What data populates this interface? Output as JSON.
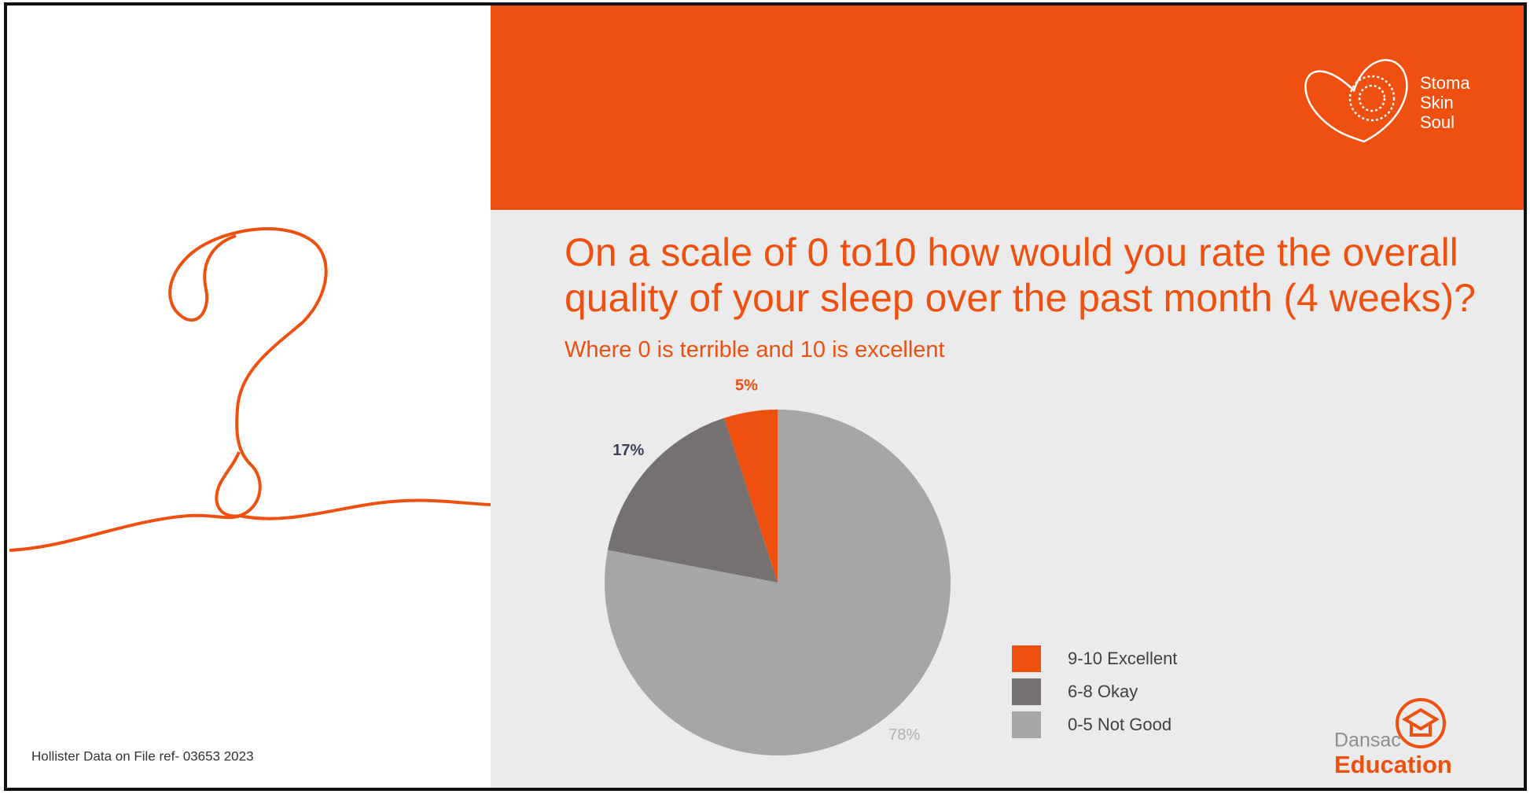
{
  "header": {
    "logo": [
      "Stoma",
      "Skin",
      "Soul"
    ]
  },
  "chart_data": {
    "type": "pie",
    "title": "On a scale of 0 to10 how would you rate the overall quality of your sleep over the past month (4 weeks)?",
    "subtitle": "Where 0 is terrible and 10 is excellent",
    "categories": [
      "9-10 Excellent",
      "6-8 Okay",
      "0-5 Not Good"
    ],
    "values": [
      5,
      17,
      78
    ],
    "value_labels": [
      "5%",
      "17%",
      "78%"
    ],
    "colors": [
      "#f0500f",
      "#767171",
      "#a6a6a6"
    ],
    "label_colors": [
      "#f0500f",
      "#3b3f5c",
      "#b0b0b0"
    ]
  },
  "footnote": "Hollister Data on File ref- 03653 2023",
  "brand": {
    "name": "Dansac",
    "tagline": "Education"
  }
}
